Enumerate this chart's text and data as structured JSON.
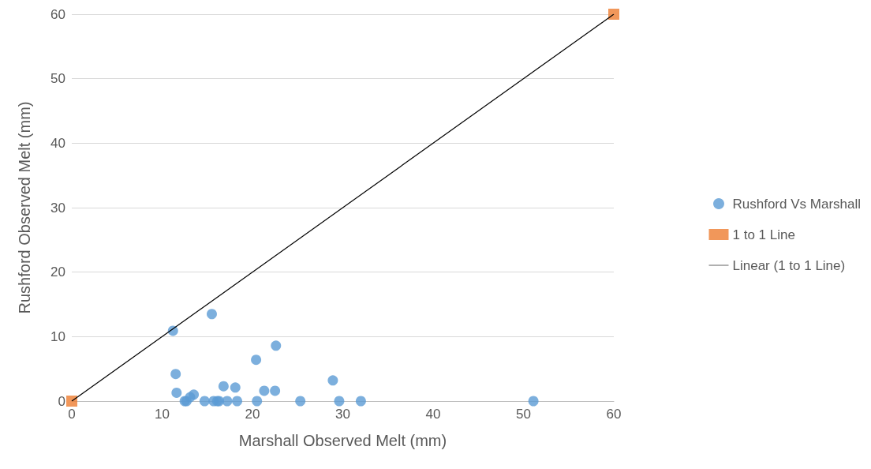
{
  "chart_data": {
    "type": "scatter",
    "xlabel": "Marshall Observed Melt (mm)",
    "ylabel": "Rushford Observed Melt (mm)",
    "xlim": [
      0,
      60
    ],
    "xticks": [
      0,
      10,
      20,
      30,
      40,
      50,
      60
    ],
    "ylim": [
      0,
      60
    ],
    "yticks": [
      0,
      10,
      20,
      30,
      40,
      50,
      60
    ],
    "grid": "y",
    "legend": "right",
    "series": [
      {
        "name": "Rushford Vs Marshall",
        "color": "#5b9bd5",
        "marker": "circle",
        "x": [
          11.2,
          15.5,
          11.5,
          11.6,
          12.5,
          12.7,
          13.1,
          13.5,
          14.7,
          15.7,
          16.1,
          16.3,
          16.8,
          17.2,
          18.1,
          18.3,
          20.4,
          20.5,
          21.3,
          22.5,
          22.6,
          25.3,
          28.9,
          29.6,
          32.0,
          51.1
        ],
        "values": [
          10.9,
          13.5,
          4.2,
          1.3,
          0,
          0,
          0.6,
          1.0,
          0,
          0,
          0,
          0,
          2.3,
          0,
          2.1,
          0,
          6.4,
          0,
          1.6,
          1.6,
          8.6,
          0,
          3.2,
          0,
          0,
          0
        ]
      },
      {
        "name": "1 to 1 Line",
        "color": "#ed7d31",
        "marker": "square",
        "x": [
          0,
          60
        ],
        "values": [
          0,
          60
        ]
      },
      {
        "name": "Linear (1 to 1 Line)",
        "type": "line",
        "color": "#000000",
        "marker": "none",
        "line_style": "solid",
        "x": [
          0,
          60
        ],
        "values": [
          0,
          60
        ]
      }
    ]
  }
}
